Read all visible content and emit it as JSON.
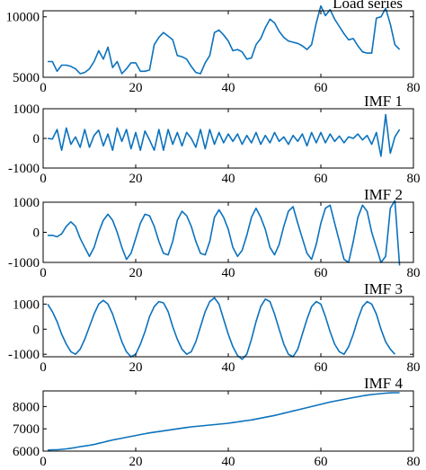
{
  "chart_data": [
    {
      "type": "line",
      "title": "Load series",
      "xlim": [
        0,
        80
      ],
      "ylim": [
        5000,
        10500
      ],
      "xticks": [
        0,
        20,
        40,
        60,
        80
      ],
      "yticks": [
        5000,
        10000
      ],
      "grid": false,
      "series": [
        {
          "color": "#0b72bd",
          "values": [
            6300,
            6300,
            5500,
            6000,
            6000,
            5900,
            5700,
            5300,
            5400,
            5700,
            6300,
            7200,
            6500,
            7500,
            5800,
            6300,
            5300,
            5700,
            6200,
            6200,
            5500,
            5500,
            5600,
            7700,
            8300,
            8700,
            8400,
            8100,
            6800,
            6700,
            6500,
            5900,
            5400,
            5300,
            6200,
            6800,
            8700,
            8900,
            8500,
            8000,
            7200,
            7300,
            7100,
            6500,
            6600,
            7700,
            8200,
            9100,
            9800,
            9500,
            8800,
            8300,
            8000,
            7900,
            7800,
            7600,
            7300,
            7700,
            9500,
            10900,
            10100,
            10600,
            9800,
            9200,
            8600,
            8100,
            8200,
            7600,
            7100,
            7000,
            7000,
            9900,
            10000,
            10700,
            9400,
            7700,
            7300
          ]
        }
      ]
    },
    {
      "type": "line",
      "title": "IMF 1",
      "xlim": [
        0,
        80
      ],
      "ylim": [
        -1000,
        1000
      ],
      "xticks": [
        0,
        20,
        40,
        60,
        80
      ],
      "yticks": [
        -1000,
        0,
        1000
      ],
      "grid": false,
      "series": [
        {
          "color": "#0b72bd",
          "values": [
            0,
            -20,
            300,
            -400,
            350,
            -200,
            50,
            -300,
            300,
            -300,
            100,
            280,
            -250,
            150,
            -400,
            350,
            -100,
            300,
            -350,
            200,
            -400,
            250,
            -50,
            -400,
            300,
            -400,
            300,
            -200,
            200,
            -250,
            200,
            0,
            -300,
            300,
            -350,
            300,
            -200,
            200,
            -150,
            150,
            -100,
            150,
            -200,
            100,
            -150,
            200,
            -200,
            100,
            -150,
            200,
            -100,
            50,
            -200,
            100,
            -100,
            150,
            -250,
            200,
            -150,
            200,
            -150,
            150,
            -100,
            80,
            -150,
            50,
            0,
            150,
            -50,
            100,
            -200,
            200,
            -600,
            800,
            -500,
            50,
            300
          ]
        }
      ]
    },
    {
      "type": "line",
      "title": "IMF 2",
      "xlim": [
        0,
        80
      ],
      "ylim": [
        -1000,
        1000
      ],
      "xticks": [
        0,
        20,
        40,
        60,
        80
      ],
      "yticks": [
        -1000,
        0,
        1000
      ],
      "grid": false,
      "series": [
        {
          "color": "#0b72bd",
          "values": [
            -100,
            -100,
            -150,
            -50,
            200,
            350,
            200,
            -200,
            -500,
            -800,
            -500,
            0,
            400,
            600,
            400,
            0,
            -500,
            -900,
            -700,
            -200,
            300,
            600,
            550,
            200,
            -300,
            -700,
            -750,
            -300,
            400,
            700,
            550,
            200,
            -300,
            -700,
            -750,
            -300,
            500,
            750,
            500,
            100,
            -500,
            -800,
            -600,
            -100,
            500,
            800,
            500,
            100,
            -500,
            -750,
            -400,
            200,
            700,
            850,
            300,
            -200,
            -700,
            -900,
            -400,
            300,
            800,
            900,
            300,
            -300,
            -900,
            -1000,
            -300,
            500,
            900,
            700,
            0,
            -500,
            -1000,
            -800,
            800,
            1050,
            -1100
          ]
        }
      ]
    },
    {
      "type": "line",
      "title": "IMF 3",
      "xlim": [
        0,
        80
      ],
      "ylim": [
        -1100,
        1300
      ],
      "xticks": [
        0,
        20,
        40,
        60,
        80
      ],
      "yticks": [
        -1000,
        0,
        1000
      ],
      "grid": false,
      "series": [
        {
          "color": "#0b72bd",
          "values": [
            1000,
            700,
            300,
            -200,
            -600,
            -900,
            -1000,
            -800,
            -400,
            100,
            600,
            1000,
            1150,
            1000,
            600,
            50,
            -500,
            -900,
            -1100,
            -1000,
            -600,
            -100,
            500,
            900,
            1100,
            1050,
            700,
            100,
            -400,
            -800,
            -1000,
            -900,
            -500,
            100,
            700,
            1100,
            1250,
            1000,
            400,
            -200,
            -700,
            -1050,
            -1200,
            -1000,
            -400,
            300,
            900,
            1200,
            1100,
            600,
            0,
            -600,
            -1000,
            -1100,
            -800,
            -200,
            400,
            900,
            1100,
            1000,
            500,
            -100,
            -600,
            -900,
            -1000,
            -700,
            -200,
            400,
            900,
            1100,
            1000,
            600,
            0,
            -500,
            -800,
            -1000
          ]
        }
      ]
    },
    {
      "type": "line",
      "title": "IMF 4",
      "xlim": [
        0,
        80
      ],
      "ylim": [
        6000,
        8700
      ],
      "xticks": [
        0,
        20,
        40,
        60,
        80
      ],
      "yticks": [
        6000,
        7000,
        8000
      ],
      "grid": false,
      "series": [
        {
          "color": "#0b72bd",
          "values": [
            6050,
            6060,
            6060,
            6080,
            6100,
            6130,
            6160,
            6200,
            6230,
            6260,
            6300,
            6350,
            6400,
            6450,
            6500,
            6540,
            6580,
            6620,
            6660,
            6700,
            6740,
            6780,
            6820,
            6850,
            6880,
            6910,
            6940,
            6970,
            7000,
            7030,
            7060,
            7090,
            7110,
            7130,
            7150,
            7170,
            7190,
            7210,
            7230,
            7250,
            7280,
            7310,
            7340,
            7370,
            7400,
            7440,
            7480,
            7520,
            7560,
            7600,
            7650,
            7700,
            7750,
            7800,
            7850,
            7900,
            7950,
            8000,
            8050,
            8100,
            8150,
            8200,
            8240,
            8280,
            8320,
            8360,
            8400,
            8440,
            8480,
            8510,
            8540,
            8560,
            8580,
            8600,
            8610,
            8620,
            8620
          ]
        }
      ]
    }
  ]
}
